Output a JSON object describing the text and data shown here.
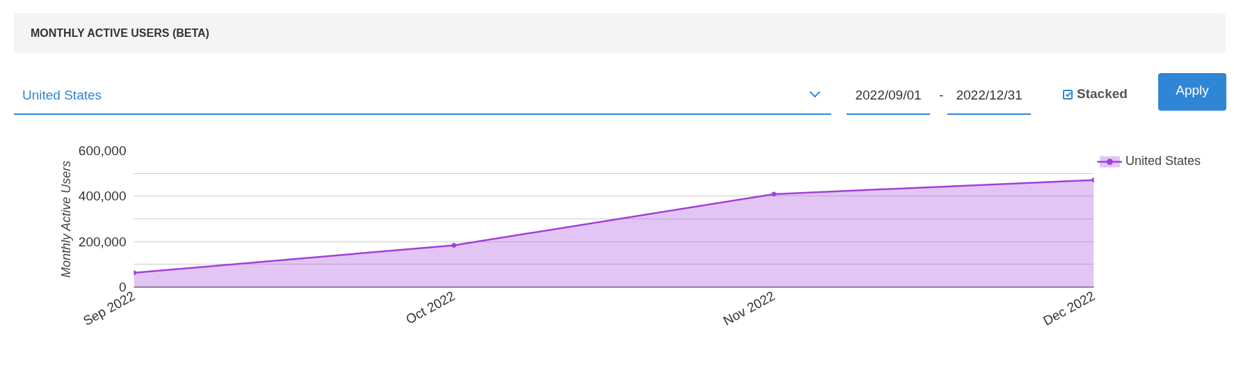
{
  "chart_data": {
    "type": "area",
    "title": "MONTHLY ACTIVE USERS (BETA)",
    "ylabel": "Monthly Active Users",
    "categories": [
      "Sep 2022",
      "Oct 2022",
      "Nov 2022",
      "Dec 2022"
    ],
    "series": [
      {
        "name": "United States",
        "color": "#a040dc",
        "values": [
          63000,
          184000,
          409000,
          471000
        ]
      }
    ],
    "ylim": [
      0,
      600000
    ],
    "yticks": [
      0,
      {
        "value": 100000,
        "label": null
      },
      {
        "value": 200000,
        "label": "200,000"
      },
      {
        "value": 300000,
        "label": null
      },
      {
        "value": 400000,
        "label": "400,000"
      },
      {
        "value": 500000,
        "label": null
      },
      {
        "value": 600000,
        "label": "600,000"
      }
    ],
    "grid": "y",
    "legend": "right",
    "marker": "circle",
    "annotations": [
      "United States",
      "2022/09/01",
      "-",
      "2022/12/31",
      "Stacked",
      "Apply"
    ]
  }
}
